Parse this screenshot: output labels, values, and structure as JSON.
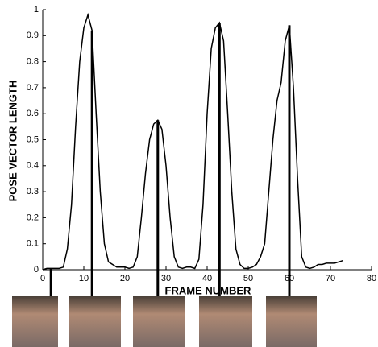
{
  "chart_data": {
    "type": "line",
    "xlabel": "FRAME NUMBER",
    "ylabel": "POSE VECTOR LENGTH",
    "x": [
      0,
      1,
      2,
      3,
      4,
      5,
      6,
      7,
      8,
      9,
      10,
      11,
      12,
      13,
      14,
      15,
      16,
      17,
      18,
      19,
      20,
      21,
      22,
      23,
      24,
      25,
      26,
      27,
      28,
      29,
      30,
      31,
      32,
      33,
      34,
      35,
      36,
      37,
      38,
      39,
      40,
      41,
      42,
      43,
      44,
      45,
      46,
      47,
      48,
      49,
      50,
      51,
      52,
      53,
      54,
      55,
      56,
      57,
      58,
      59,
      60,
      61,
      62,
      63,
      64,
      65,
      66,
      67,
      68,
      69,
      70,
      71,
      72,
      73
    ],
    "series": [
      {
        "color": "#000000",
        "values": [
          0,
          0.005,
          0.005,
          0.005,
          0.005,
          0.01,
          0.08,
          0.25,
          0.55,
          0.8,
          0.93,
          0.98,
          0.92,
          0.6,
          0.3,
          0.1,
          0.03,
          0.02,
          0.01,
          0.01,
          0.01,
          0.005,
          0.01,
          0.05,
          0.2,
          0.37,
          0.5,
          0.56,
          0.575,
          0.54,
          0.4,
          0.2,
          0.05,
          0.01,
          0.005,
          0.01,
          0.01,
          0.005,
          0.04,
          0.25,
          0.6,
          0.85,
          0.93,
          0.95,
          0.88,
          0.6,
          0.3,
          0.08,
          0.02,
          0.005,
          0.005,
          0.01,
          0.02,
          0.05,
          0.1,
          0.3,
          0.5,
          0.65,
          0.72,
          0.88,
          0.94,
          0.7,
          0.35,
          0.05,
          0.01,
          0.005,
          0.01,
          0.02,
          0.02,
          0.025,
          0.025,
          0.025,
          0.03,
          0.035
        ]
      }
    ],
    "marked_frames": [
      2,
      12,
      28,
      43,
      60
    ],
    "xlim": [
      0,
      80
    ],
    "xticks": [
      0,
      10,
      20,
      30,
      40,
      50,
      60,
      70,
      80
    ],
    "ylim": [
      0,
      1
    ],
    "yticks": [
      0,
      0.1,
      0.2,
      0.3,
      0.4,
      0.5,
      0.6,
      0.7,
      0.8,
      0.9,
      1
    ]
  }
}
